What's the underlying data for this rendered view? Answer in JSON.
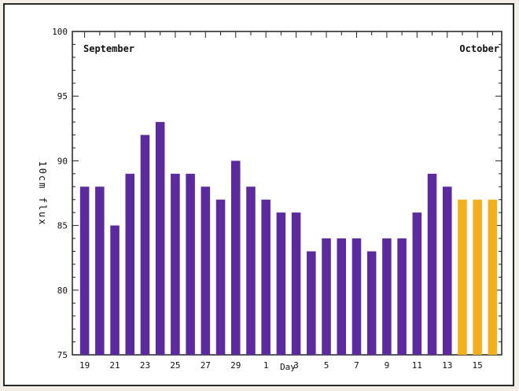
{
  "chart_data": {
    "type": "bar",
    "xlabel": "Day",
    "ylabel": "10cm flux",
    "ylim": [
      75,
      100
    ],
    "yticks": [
      75,
      80,
      85,
      90,
      95,
      100
    ],
    "month_labels": {
      "left": "September",
      "right": "October"
    },
    "categories": [
      "19",
      "20",
      "21",
      "22",
      "23",
      "24",
      "25",
      "26",
      "27",
      "28",
      "29",
      "30",
      "1",
      "2",
      "3",
      "4",
      "5",
      "6",
      "7",
      "8",
      "9",
      "10",
      "11",
      "12",
      "13",
      "14",
      "15",
      "16"
    ],
    "tick_labels": [
      "19",
      "21",
      "23",
      "25",
      "27",
      "29",
      "1",
      "3",
      "5",
      "7",
      "9",
      "11",
      "13",
      "15"
    ],
    "series": [
      {
        "kind": "observed",
        "color": "#5a2a9e",
        "values": [
          88,
          88,
          85,
          89,
          92,
          93,
          89,
          89,
          88,
          87,
          90,
          88,
          87,
          86,
          86,
          83,
          84,
          84,
          84,
          83,
          84,
          84,
          86,
          89,
          88,
          null,
          null,
          null
        ]
      },
      {
        "kind": "forecast",
        "color": "#f4b01c",
        "values": [
          null,
          null,
          null,
          null,
          null,
          null,
          null,
          null,
          null,
          null,
          null,
          null,
          null,
          null,
          null,
          null,
          null,
          null,
          null,
          null,
          null,
          null,
          null,
          null,
          null,
          87,
          87,
          87
        ]
      }
    ],
    "grid": false
  }
}
